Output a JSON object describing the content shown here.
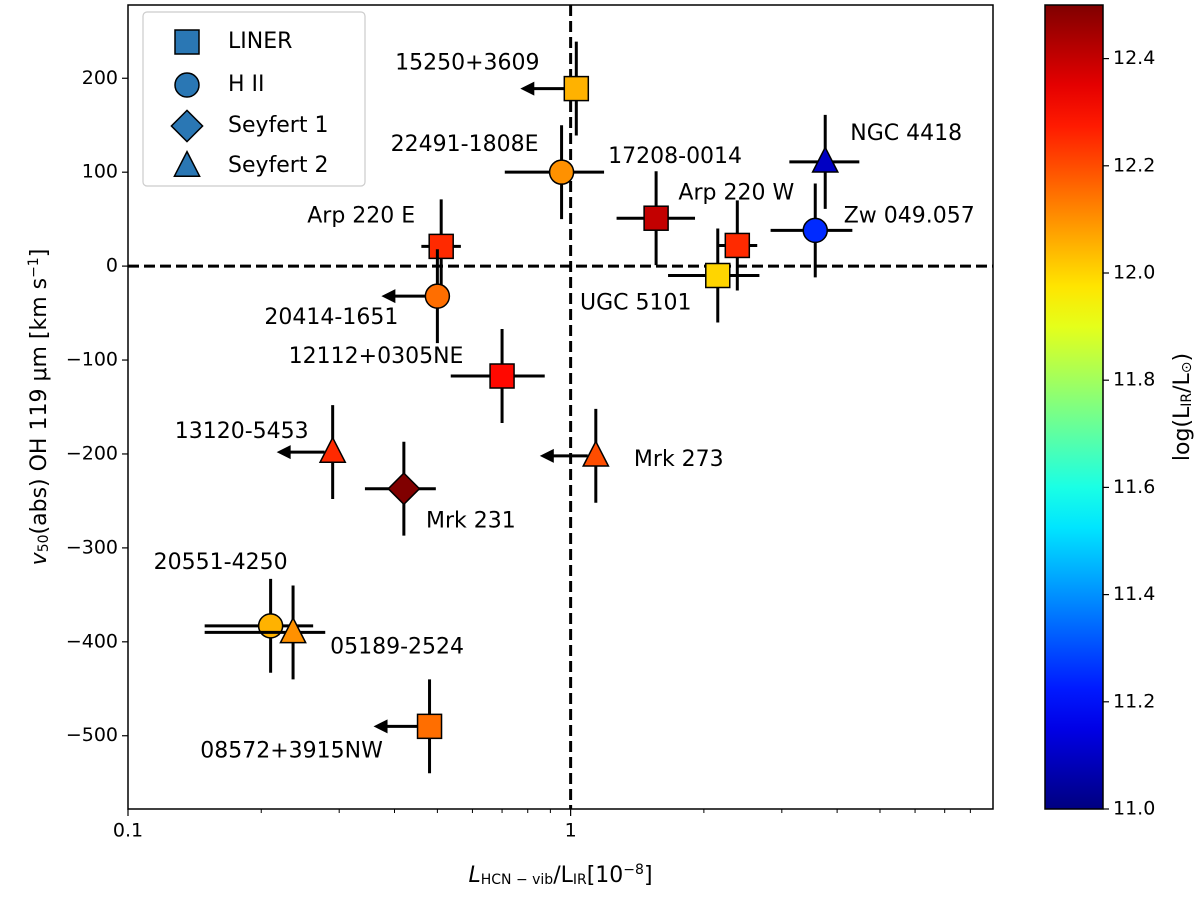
{
  "chart_data": {
    "type": "scatter",
    "xlabel": [
      "L",
      "HCN − vib",
      "/L",
      "IR",
      "[10",
      "−8",
      "]"
    ],
    "ylabel": [
      "v",
      "50",
      "(abs) OH 119 μm [km s",
      "−1",
      "]"
    ],
    "colorbar_label": [
      "log(L",
      "IR",
      "/L",
      "⊙",
      ")"
    ],
    "xscale": "log",
    "xlim": [
      0.1,
      9
    ],
    "ylim": [
      -578,
      278
    ],
    "xticks": [
      0.1,
      1
    ],
    "xminor": [
      0.2,
      0.3,
      0.4,
      0.5,
      0.6,
      0.7,
      0.8,
      0.9,
      2,
      3,
      4,
      5,
      6,
      7,
      8
    ],
    "yticks": [
      {
        "value": -500,
        "label": "−500"
      },
      {
        "value": -400,
        "label": "−400"
      },
      {
        "value": -300,
        "label": "−300"
      },
      {
        "value": -200,
        "label": "−200"
      },
      {
        "value": -100,
        "label": "−100"
      },
      0,
      100,
      200
    ],
    "clim": [
      11.0,
      12.5
    ],
    "cticks": [
      {
        "value": 11.0,
        "label": "11.0"
      },
      11.2,
      11.4,
      11.6,
      11.8,
      {
        "value": 12.0,
        "label": "12.0"
      },
      12.2,
      12.4
    ],
    "colormap": "jet",
    "vline": 1,
    "hline": 0,
    "legend_position": "upper left",
    "legend_color": "#2a77b4",
    "legend": [
      {
        "name": "LINER",
        "marker": "square"
      },
      {
        "name": "H II",
        "marker": "circle"
      },
      {
        "name": "Seyfert 1",
        "marker": "diamond"
      },
      {
        "name": "Seyfert 2",
        "marker": "triangle"
      }
    ],
    "points": [
      {
        "name": "15250+3609",
        "marker": "square",
        "x": 1.03,
        "y": 189,
        "c": 12.05,
        "yerr": 50,
        "upper": true
      },
      {
        "name": "22491-1808E",
        "marker": "circle",
        "x": 0.954,
        "y": 100,
        "c": 12.1,
        "yerr": 50,
        "xlo": 0.71,
        "xhi": 1.19
      },
      {
        "name": "17208-0014",
        "marker": "square",
        "x": 1.56,
        "y": 51,
        "c": 12.4,
        "yerr": 50,
        "xlo": 1.27,
        "xhi": 1.91
      },
      {
        "name": "Arp 220 W",
        "marker": "square",
        "x": 2.38,
        "y": 22,
        "c": 12.25,
        "yerr": 48,
        "xlo": 2.15,
        "xhi": 2.64
      },
      {
        "name": "Arp 220 E",
        "marker": "square",
        "x": 0.51,
        "y": 21,
        "c": 12.25,
        "yerr": 50,
        "xlo": 0.46,
        "xhi": 0.565
      },
      {
        "name": "UGC 5101",
        "marker": "square",
        "x": 2.15,
        "y": -10,
        "c": 12.0,
        "yerr": 50,
        "xlo": 1.66,
        "xhi": 2.67
      },
      {
        "name": "NGC 4418",
        "marker": "triangle",
        "x": 3.76,
        "y": 111,
        "c": 11.1,
        "yerr": 50,
        "xlo": 3.12,
        "xhi": 4.49
      },
      {
        "name": "Zw 049.057",
        "marker": "circle",
        "x": 3.57,
        "y": 38,
        "c": 11.25,
        "yerr": 50,
        "xlo": 2.83,
        "xhi": 4.33
      },
      {
        "name": "20414-1651",
        "marker": "circle",
        "x": 0.5,
        "y": -32,
        "c": 12.15,
        "yerr": 50,
        "upper": true
      },
      {
        "name": "12112+0305NE",
        "marker": "square",
        "x": 0.7,
        "y": -117,
        "c": 12.3,
        "yerr": 50,
        "xlo": 0.536,
        "xhi": 0.874
      },
      {
        "name": "13120-5453",
        "marker": "triangle",
        "x": 0.29,
        "y": -198,
        "c": 12.25,
        "yerr": 50,
        "upper": true
      },
      {
        "name": "Mrk 273",
        "marker": "triangle",
        "x": 1.14,
        "y": -202,
        "c": 12.2,
        "yerr": 50,
        "upper": true
      },
      {
        "name": "Mrk 231",
        "marker": "diamond",
        "x": 0.42,
        "y": -237,
        "c": 12.5,
        "yerr": 50,
        "xlo": 0.343,
        "xhi": 0.496
      },
      {
        "name": "20551-4250",
        "marker": "circle",
        "x": 0.21,
        "y": -383,
        "c": 12.05,
        "yerr": 50,
        "xlo": 0.149,
        "xhi": 0.262
      },
      {
        "name": "05189-2524",
        "marker": "triangle",
        "x": 0.236,
        "y": -390,
        "c": 12.1,
        "yerr": 50,
        "xlo": 0.149,
        "xhi": 0.279
      },
      {
        "name": "08572+3915NW",
        "marker": "square",
        "x": 0.48,
        "y": -490,
        "c": 12.15,
        "yerr": 50,
        "upper": true
      }
    ]
  }
}
